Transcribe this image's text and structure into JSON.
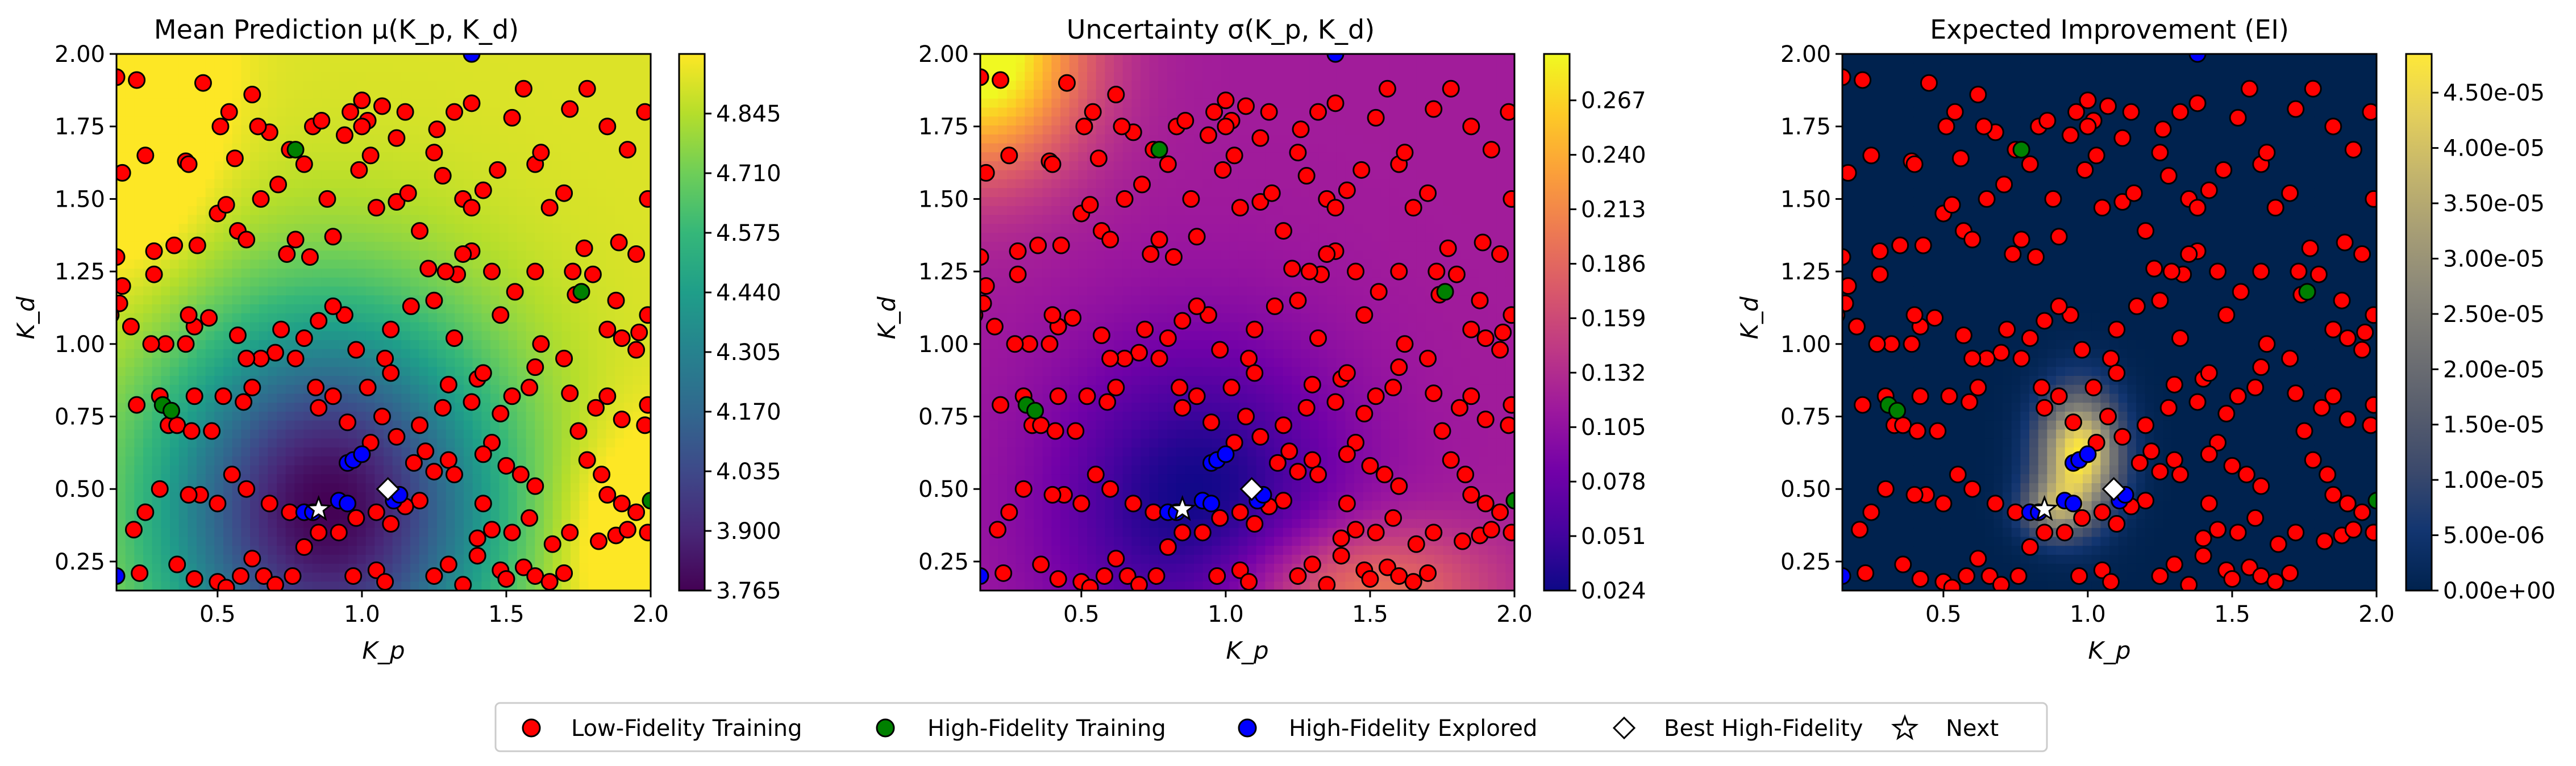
{
  "legend": {
    "placement": "bottom-center",
    "items": [
      {
        "label": "Low-Fidelity Training",
        "marker": "circle",
        "color": "#ff0000"
      },
      {
        "label": "High-Fidelity Training",
        "marker": "circle",
        "color": "#008000"
      },
      {
        "label": "High-Fidelity Explored",
        "marker": "circle",
        "color": "#0000ff"
      },
      {
        "label": "Best High-Fidelity",
        "marker": "diamond",
        "color": "#ffffff"
      },
      {
        "label": "Next",
        "marker": "star",
        "color": "#ffffff"
      }
    ]
  },
  "colors": {
    "low_fidelity": "#ff0000",
    "high_fidelity": "#008000",
    "explored": "#0000ff",
    "edge": "#000000"
  },
  "chart_data": [
    {
      "type": "heatmap",
      "title": "Mean Prediction μ(K_p, K_d)",
      "xlabel": "K_p",
      "ylabel": "K_d",
      "xlim": [
        0.15,
        2.0
      ],
      "ylim": [
        0.15,
        2.0
      ],
      "xticks": [
        "0.5",
        "1.0",
        "1.5",
        "2.0"
      ],
      "yticks": [
        "0.25",
        "0.50",
        "0.75",
        "1.00",
        "1.25",
        "1.50",
        "1.75",
        "2.00"
      ],
      "colormap": "viridis",
      "colorbar": {
        "min": 3.765,
        "max": 4.98,
        "ticks": [
          "3.765",
          "3.900",
          "4.035",
          "4.170",
          "4.305",
          "4.440",
          "4.575",
          "4.710",
          "4.845"
        ]
      },
      "surface": {
        "min_location": [
          0.88,
          0.43
        ],
        "center": 3.765,
        "edge": 4.98
      }
    },
    {
      "type": "heatmap",
      "title": "Uncertainty σ(K_p, K_d)",
      "xlabel": "K_p",
      "ylabel": "K_d",
      "xlim": [
        0.15,
        2.0
      ],
      "ylim": [
        0.15,
        2.0
      ],
      "xticks": [
        "0.5",
        "1.0",
        "1.5",
        "2.0"
      ],
      "yticks": [
        "0.25",
        "0.50",
        "0.75",
        "1.00",
        "1.25",
        "1.50",
        "1.75",
        "2.00"
      ],
      "colormap": "plasma",
      "colorbar": {
        "min": 0.024,
        "max": 0.29,
        "ticks": [
          "0.024",
          "0.051",
          "0.078",
          "0.105",
          "0.132",
          "0.159",
          "0.186",
          "0.213",
          "0.240",
          "0.267"
        ]
      },
      "surface": {
        "min_location": [
          0.9,
          0.45
        ],
        "center": 0.024,
        "corner_top_left": 0.29
      }
    },
    {
      "type": "heatmap",
      "title": "Expected Improvement (EI)",
      "xlabel": "K_p",
      "ylabel": "K_d",
      "xlim": [
        0.15,
        2.0
      ],
      "ylim": [
        0.15,
        2.0
      ],
      "xticks": [
        "0.5",
        "1.0",
        "1.5",
        "2.0"
      ],
      "yticks": [
        "0.25",
        "0.50",
        "0.75",
        "1.00",
        "1.25",
        "1.50",
        "1.75",
        "2.00"
      ],
      "colormap": "cividis",
      "colorbar": {
        "min": 0.0,
        "max": 4.85e-05,
        "ticks": [
          "0.00e+00",
          "5.00e-06",
          "1.00e-05",
          "1.50e-05",
          "2.00e-05",
          "2.50e-05",
          "3.00e-05",
          "3.50e-05",
          "4.00e-05",
          "4.50e-05"
        ]
      },
      "surface": {
        "peak_location": [
          0.97,
          0.62
        ],
        "peak": 4.85e-05
      }
    }
  ],
  "points": {
    "low_fidelity": [
      [
        0.15,
        1.92
      ],
      [
        0.22,
        1.91
      ],
      [
        0.25,
        1.65
      ],
      [
        0.17,
        1.59
      ],
      [
        0.15,
        1.3
      ],
      [
        0.17,
        1.2
      ],
      [
        0.16,
        1.14
      ],
      [
        0.13,
        1.1
      ],
      [
        0.2,
        1.06
      ],
      [
        0.28,
        1.24
      ],
      [
        0.39,
        1.0
      ],
      [
        0.42,
        1.06
      ],
      [
        0.32,
        1.0
      ],
      [
        0.27,
        1.0
      ],
      [
        0.3,
        0.82
      ],
      [
        0.22,
        0.79
      ],
      [
        0.33,
        0.72
      ],
      [
        0.36,
        0.72
      ],
      [
        0.41,
        0.7
      ],
      [
        0.48,
        0.7
      ],
      [
        0.42,
        0.82
      ],
      [
        0.52,
        0.82
      ],
      [
        0.59,
        0.8
      ],
      [
        0.62,
        0.85
      ],
      [
        0.4,
        1.1
      ],
      [
        0.47,
        1.09
      ],
      [
        0.28,
        1.32
      ],
      [
        0.35,
        1.34
      ],
      [
        0.43,
        1.34
      ],
      [
        0.39,
        1.63
      ],
      [
        0.4,
        1.62
      ],
      [
        0.5,
        1.45
      ],
      [
        0.53,
        1.48
      ],
      [
        0.57,
        1.39
      ],
      [
        0.6,
        1.36
      ],
      [
        0.65,
        1.5
      ],
      [
        0.71,
        1.55
      ],
      [
        0.74,
        1.31
      ],
      [
        0.77,
        1.36
      ],
      [
        0.82,
        1.3
      ],
      [
        0.88,
        1.5
      ],
      [
        0.9,
        1.37
      ],
      [
        0.8,
        1.62
      ],
      [
        0.75,
        1.67
      ],
      [
        0.68,
        1.73
      ],
      [
        0.64,
        1.75
      ],
      [
        0.62,
        1.86
      ],
      [
        0.54,
        1.8
      ],
      [
        0.51,
        1.75
      ],
      [
        0.45,
        1.9
      ],
      [
        0.56,
        1.64
      ],
      [
        0.83,
        1.75
      ],
      [
        0.86,
        1.77
      ],
      [
        0.94,
        1.72
      ],
      [
        0.96,
        1.8
      ],
      [
        1.0,
        1.84
      ],
      [
        1.02,
        1.77
      ],
      [
        1.07,
        1.82
      ],
      [
        1.12,
        1.71
      ],
      [
        1.15,
        1.8
      ],
      [
        0.99,
        1.6
      ],
      [
        1.0,
        1.75
      ],
      [
        1.03,
        1.65
      ],
      [
        1.05,
        1.47
      ],
      [
        1.12,
        1.49
      ],
      [
        1.16,
        1.52
      ],
      [
        1.2,
        1.39
      ],
      [
        1.25,
        1.66
      ],
      [
        1.28,
        1.58
      ],
      [
        1.26,
        1.74
      ],
      [
        1.32,
        1.8
      ],
      [
        1.38,
        1.83
      ],
      [
        1.35,
        1.5
      ],
      [
        1.38,
        1.47
      ],
      [
        1.42,
        1.53
      ],
      [
        1.47,
        1.6
      ],
      [
        1.52,
        1.78
      ],
      [
        1.56,
        1.88
      ],
      [
        1.6,
        1.62
      ],
      [
        1.62,
        1.66
      ],
      [
        1.65,
        1.47
      ],
      [
        1.7,
        1.52
      ],
      [
        1.72,
        1.81
      ],
      [
        1.78,
        1.88
      ],
      [
        1.85,
        1.75
      ],
      [
        1.92,
        1.67
      ],
      [
        1.98,
        1.8
      ],
      [
        1.89,
        1.35
      ],
      [
        1.95,
        1.31
      ],
      [
        1.99,
        1.5
      ],
      [
        1.77,
        1.33
      ],
      [
        1.8,
        1.24
      ],
      [
        1.74,
        1.17
      ],
      [
        1.73,
        1.25
      ],
      [
        1.6,
        1.25
      ],
      [
        1.53,
        1.18
      ],
      [
        1.48,
        1.1
      ],
      [
        1.45,
        1.25
      ],
      [
        1.38,
        1.32
      ],
      [
        1.35,
        1.31
      ],
      [
        1.33,
        1.24
      ],
      [
        1.29,
        1.25
      ],
      [
        1.23,
        1.26
      ],
      [
        1.25,
        1.15
      ],
      [
        1.17,
        1.13
      ],
      [
        1.1,
        1.05
      ],
      [
        1.08,
        0.95
      ],
      [
        1.1,
        0.9
      ],
      [
        1.02,
        0.85
      ],
      [
        0.98,
        0.98
      ],
      [
        0.94,
        1.1
      ],
      [
        0.9,
        1.13
      ],
      [
        0.85,
        1.08
      ],
      [
        0.8,
        1.02
      ],
      [
        0.77,
        0.95
      ],
      [
        0.72,
        1.05
      ],
      [
        0.7,
        0.97
      ],
      [
        0.65,
        0.95
      ],
      [
        0.6,
        0.95
      ],
      [
        0.57,
        1.03
      ],
      [
        0.84,
        0.85
      ],
      [
        0.85,
        0.78
      ],
      [
        0.9,
        0.82
      ],
      [
        0.95,
        0.73
      ],
      [
        1.03,
        0.66
      ],
      [
        1.07,
        0.75
      ],
      [
        1.12,
        0.68
      ],
      [
        1.2,
        0.72
      ],
      [
        1.22,
        0.63
      ],
      [
        1.18,
        0.59
      ],
      [
        1.25,
        0.56
      ],
      [
        1.3,
        0.6
      ],
      [
        1.32,
        0.55
      ],
      [
        1.2,
        0.46
      ],
      [
        1.15,
        0.44
      ],
      [
        1.05,
        0.42
      ],
      [
        1.1,
        0.38
      ],
      [
        0.98,
        0.4
      ],
      [
        0.92,
        0.35
      ],
      [
        0.85,
        0.35
      ],
      [
        0.75,
        0.42
      ],
      [
        0.68,
        0.45
      ],
      [
        0.6,
        0.5
      ],
      [
        0.55,
        0.55
      ],
      [
        0.5,
        0.45
      ],
      [
        0.44,
        0.48
      ],
      [
        0.4,
        0.48
      ],
      [
        0.3,
        0.5
      ],
      [
        0.25,
        0.42
      ],
      [
        0.21,
        0.36
      ],
      [
        0.23,
        0.21
      ],
      [
        0.36,
        0.24
      ],
      [
        0.42,
        0.19
      ],
      [
        0.5,
        0.18
      ],
      [
        0.53,
        0.16
      ],
      [
        0.58,
        0.2
      ],
      [
        0.62,
        0.26
      ],
      [
        0.66,
        0.2
      ],
      [
        0.7,
        0.17
      ],
      [
        0.76,
        0.2
      ],
      [
        0.8,
        0.3
      ],
      [
        0.97,
        0.2
      ],
      [
        1.05,
        0.22
      ],
      [
        1.08,
        0.18
      ],
      [
        1.25,
        0.2
      ],
      [
        1.3,
        0.24
      ],
      [
        1.35,
        0.17
      ],
      [
        1.4,
        0.27
      ],
      [
        1.48,
        0.22
      ],
      [
        1.5,
        0.19
      ],
      [
        1.56,
        0.23
      ],
      [
        1.6,
        0.2
      ],
      [
        1.65,
        0.18
      ],
      [
        1.7,
        0.21
      ],
      [
        1.4,
        0.33
      ],
      [
        1.45,
        0.36
      ],
      [
        1.52,
        0.35
      ],
      [
        1.58,
        0.4
      ],
      [
        1.66,
        0.31
      ],
      [
        1.72,
        0.35
      ],
      [
        1.82,
        0.32
      ],
      [
        1.88,
        0.34
      ],
      [
        1.92,
        0.36
      ],
      [
        1.95,
        0.42
      ],
      [
        1.99,
        0.35
      ],
      [
        1.9,
        0.45
      ],
      [
        1.85,
        0.48
      ],
      [
        1.83,
        0.55
      ],
      [
        1.78,
        0.6
      ],
      [
        1.75,
        0.7
      ],
      [
        1.81,
        0.78
      ],
      [
        1.85,
        0.82
      ],
      [
        1.9,
        0.74
      ],
      [
        1.98,
        0.72
      ],
      [
        1.99,
        0.79
      ],
      [
        1.72,
        0.83
      ],
      [
        1.7,
        0.95
      ],
      [
        1.62,
        1.0
      ],
      [
        1.6,
        0.92
      ],
      [
        1.58,
        0.85
      ],
      [
        1.52,
        0.82
      ],
      [
        1.48,
        0.76
      ],
      [
        1.45,
        0.66
      ],
      [
        1.42,
        0.62
      ],
      [
        1.5,
        0.58
      ],
      [
        1.55,
        0.55
      ],
      [
        1.6,
        0.51
      ],
      [
        1.42,
        0.45
      ],
      [
        1.38,
        0.8
      ],
      [
        1.4,
        0.88
      ],
      [
        1.42,
        0.9
      ],
      [
        1.3,
        0.86
      ],
      [
        1.28,
        0.78
      ],
      [
        1.85,
        1.05
      ],
      [
        1.9,
        1.02
      ],
      [
        1.96,
        1.04
      ],
      [
        1.99,
        1.1
      ],
      [
        1.95,
        0.98
      ],
      [
        1.88,
        1.15
      ],
      [
        1.32,
        1.02
      ]
    ],
    "high_fidelity": [
      [
        0.77,
        1.67
      ],
      [
        1.76,
        1.18
      ],
      [
        0.31,
        0.79
      ],
      [
        0.34,
        0.77
      ],
      [
        2.0,
        0.46
      ]
    ],
    "explored": [
      [
        0.8,
        0.42
      ],
      [
        0.83,
        0.42
      ],
      [
        0.92,
        0.46
      ],
      [
        0.95,
        0.45
      ],
      [
        0.95,
        0.59
      ],
      [
        0.97,
        0.6
      ],
      [
        1.0,
        0.62
      ],
      [
        1.11,
        0.46
      ],
      [
        1.13,
        0.48
      ],
      [
        0.15,
        0.2
      ],
      [
        1.38,
        2.0
      ]
    ],
    "best_high_fidelity": [
      1.09,
      0.5
    ],
    "next": [
      0.85,
      0.43
    ]
  }
}
